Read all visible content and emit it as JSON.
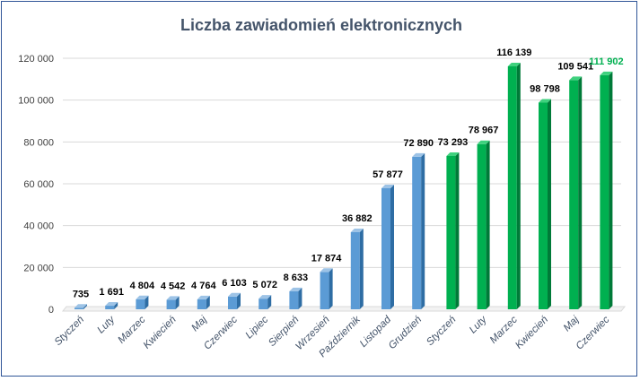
{
  "chart_data": {
    "type": "bar",
    "title": "Liczba zawiadomień elektronicznych",
    "categories": [
      "Styczeń",
      "Luty",
      "Marzec",
      "Kwiecień",
      "Maj",
      "Czerwiec",
      "Lipiec",
      "Sierpień",
      "Wrzesień",
      "Październik",
      "Listopad",
      "Grudzień",
      "Styczeń",
      "Luty",
      "Marzec",
      "Kwiecień",
      "Maj",
      "Czerwiec"
    ],
    "values": [
      735,
      1691,
      4804,
      4542,
      4764,
      6103,
      5072,
      8633,
      17874,
      36882,
      57877,
      72890,
      73293,
      78967,
      116139,
      98798,
      109541,
      111902
    ],
    "data_labels": [
      "735",
      "1 691",
      "4 804",
      "4 542",
      "4 764",
      "6 103",
      "5 072",
      "8 633",
      "17 874",
      "36 882",
      "57 877",
      "72 890",
      "73 293",
      "78 967",
      "116 139",
      "98 798",
      "109 541",
      "111 902"
    ],
    "highlighted_label_index": 17,
    "bar_colors": [
      "#5b9bd5",
      "#5b9bd5",
      "#5b9bd5",
      "#5b9bd5",
      "#5b9bd5",
      "#5b9bd5",
      "#5b9bd5",
      "#5b9bd5",
      "#5b9bd5",
      "#5b9bd5",
      "#5b9bd5",
      "#5b9bd5",
      "#00b050",
      "#00b050",
      "#00b050",
      "#00b050",
      "#00b050",
      "#00b050"
    ],
    "highlight_label_color": "#00b050",
    "yticks": [
      "0",
      "20 000",
      "40 000",
      "60 000",
      "80 000",
      "100 000",
      "120 000"
    ],
    "ytick_values": [
      0,
      20000,
      40000,
      60000,
      80000,
      100000,
      120000
    ],
    "ylim": [
      0,
      120000
    ],
    "xlabel": "",
    "ylabel": "",
    "grid": true,
    "legend": "none"
  }
}
